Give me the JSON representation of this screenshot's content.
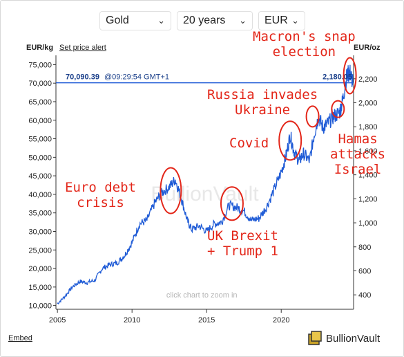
{
  "controls": {
    "metal": "Gold",
    "period": "20 years",
    "currency": "EUR"
  },
  "header": {
    "left_unit": "EUR/kg",
    "alert_link": "Set price alert",
    "right_unit": "EUR/oz"
  },
  "current_price": {
    "kg": "70,090.39",
    "time": "@09:29:54 GMT+1",
    "oz": "2,180.05",
    "value_kg": 70090.39
  },
  "watermark": "BullionVault",
  "zoom_hint": "click chart to zoom in",
  "footer": {
    "embed": "Embed",
    "brand": "BullionVault"
  },
  "annotations": {
    "macron": [
      "Macron's snap",
      "election"
    ],
    "russia": [
      "Russia invades",
      "Ukraine"
    ],
    "covid": [
      "Covid"
    ],
    "hamas": [
      "Hamas",
      "attacks",
      "Israel"
    ],
    "euro": [
      "Euro debt",
      "crisis"
    ],
    "brexit": [
      "UK Brexit",
      "+ Trump 1"
    ]
  },
  "colors": {
    "line": "#1f5bd6",
    "annotation": "#e32619",
    "axis": "#333333",
    "grid": "#e6e6e6"
  },
  "chart_data": {
    "type": "line",
    "series": [
      {
        "x": [
          2005.0,
          2005.5,
          2006.0,
          2006.5,
          2007.0,
          2007.5,
          2008.0,
          2008.5,
          2009.0,
          2009.5,
          2010.0,
          2010.5,
          2011.0,
          2011.5,
          2012.0,
          2012.5,
          2012.9,
          2013.3,
          2013.7,
          2014.0,
          2014.5,
          2015.0,
          2015.5,
          2016.0,
          2016.5,
          2017.0,
          2017.5,
          2018.0,
          2018.5,
          2019.0,
          2019.5,
          2020.0,
          2020.3,
          2020.6,
          2020.9,
          2021.2,
          2021.5,
          2021.9,
          2022.2,
          2022.5,
          2022.8,
          2023.1,
          2023.5,
          2023.9,
          2024.1,
          2024.4,
          2024.6,
          2024.8
        ],
        "y": [
          10500,
          12500,
          15000,
          16500,
          16200,
          16800,
          20000,
          21000,
          21500,
          23500,
          27000,
          32000,
          33000,
          37500,
          40500,
          42000,
          44000,
          39000,
          33000,
          30500,
          31500,
          30000,
          32000,
          32500,
          37000,
          36500,
          35500,
          33000,
          33500,
          36500,
          41000,
          46000,
          50000,
          56000,
          51000,
          49000,
          51000,
          49000,
          56000,
          61000,
          58000,
          59000,
          61000,
          62000,
          65000,
          72000,
          73000,
          70090
        ]
      }
    ],
    "xlim": [
      2004.9,
      2024.85
    ],
    "ylim_left": [
      9000,
      77500
    ],
    "ylim_right": [
      280,
      2395
    ],
    "x_ticks": [
      2005,
      2010,
      2015,
      2020
    ],
    "y_ticks_left": [
      "10,000",
      "15,000",
      "20,000",
      "25,000",
      "30,000",
      "35,000",
      "40,000",
      "45,000",
      "50,000",
      "55,000",
      "60,000",
      "65,000",
      "70,000",
      "75,000"
    ],
    "y_tick_values_left": [
      10000,
      15000,
      20000,
      25000,
      30000,
      35000,
      40000,
      45000,
      50000,
      55000,
      60000,
      65000,
      70000,
      75000
    ],
    "y_ticks_right": [
      "400",
      "600",
      "800",
      "1,000",
      "1,200",
      "1,400",
      "1,600",
      "1,800",
      "2,000",
      "2,200"
    ],
    "y_tick_values_right": [
      400,
      600,
      800,
      1000,
      1200,
      1400,
      1600,
      1800,
      2000,
      2200
    ],
    "grid": false
  }
}
